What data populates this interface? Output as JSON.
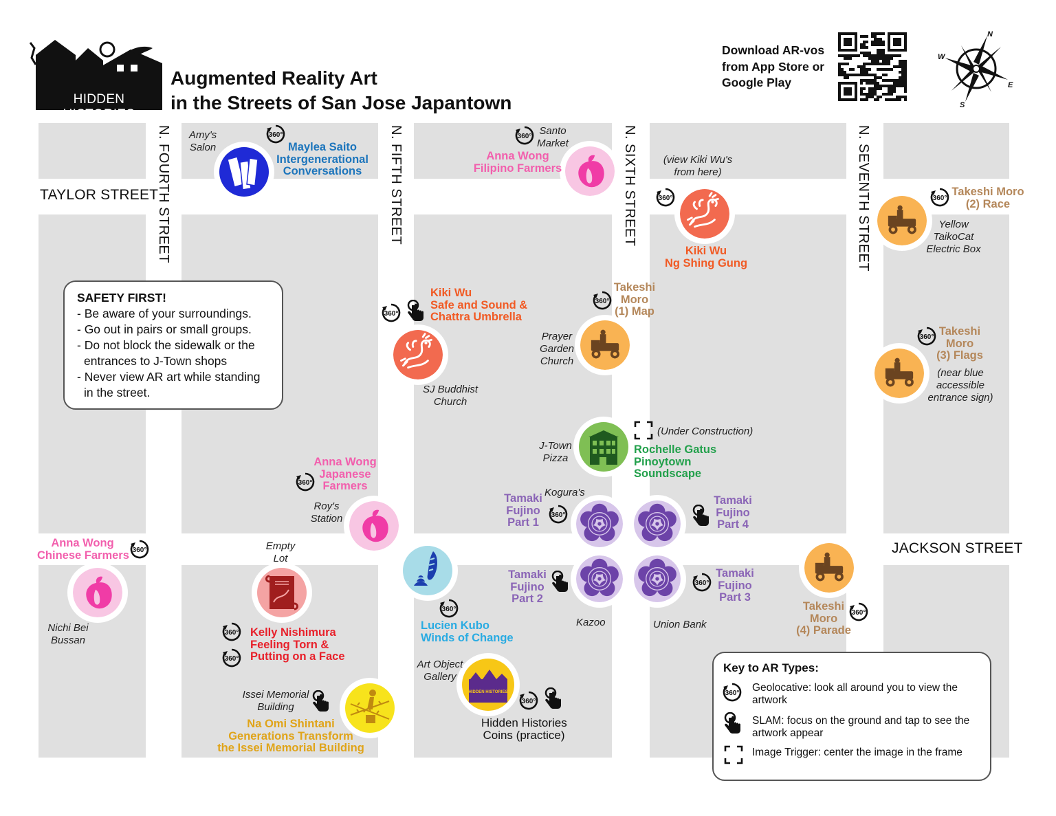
{
  "header": {
    "logo_text": "HIDDEN HISTORIES",
    "title_line1": "Augmented Reality Art",
    "title_line2": "in the Streets of San Jose Japantown",
    "download_line1": "Download AR-vos",
    "download_line2": "from App Store or",
    "download_line3": "Google Play",
    "compass": {
      "n": "N",
      "s": "S",
      "e": "E",
      "w": "W"
    }
  },
  "streets": {
    "taylor": "TAYLOR STREET",
    "jackson": "JACKSON STREET",
    "fourth": "N. FOURTH STREET",
    "fifth": "N. FIFTH STREET",
    "sixth": "N. SIXTH STREET",
    "seventh": "N. SEVENTH STREET"
  },
  "places": {
    "amys_1": "Amy's",
    "amys_2": "Salon",
    "santo_1": "Santo",
    "santo_2": "Market",
    "view_kiki_1": "(view Kiki Wu's",
    "view_kiki_2": "from here)",
    "yellow_1": "Yellow",
    "yellow_2": "TaikoCat",
    "yellow_3": "Electric Box",
    "prayer_1": "Prayer",
    "prayer_2": "Garden",
    "prayer_3": "Church",
    "sjb_1": "SJ Buddhist",
    "sjb_2": "Church",
    "nearblue_1": "(near blue",
    "nearblue_2": "accessible",
    "nearblue_3": "entrance sign)",
    "underconst": "(Under Construction)",
    "jtown_1": "J-Town",
    "jtown_2": "Pizza",
    "roys_1": "Roy's",
    "roys_2": "Station",
    "kogura": "Kogura's",
    "empty_1": "Empty",
    "empty_2": "Lot",
    "nichi_1": "Nichi Bei",
    "nichi_2": "Bussan",
    "kazoo": "Kazoo",
    "union": "Union Bank",
    "artobj_1": "Art Object",
    "artobj_2": "Gallery",
    "issei_1": "Issei Memorial",
    "issei_2": "Building"
  },
  "artworks": {
    "maylea_1": "Maylea Saito",
    "maylea_2": "Intergenerational",
    "maylea_3": "Conversations",
    "anna_fil_1": "Anna Wong",
    "anna_fil_2": "Filipino Farmers",
    "kiki_ng_1": "Kiki Wu",
    "kiki_ng_2": "Ng Shing Gung",
    "moro_race_1": "Takeshi Moro",
    "moro_race_2": "(2) Race",
    "kiki_safe_1": "Kiki Wu",
    "kiki_safe_2": "Safe and Sound &",
    "kiki_safe_3": "Chattra Umbrella",
    "moro_map_1": "Takeshi",
    "moro_map_2": "Moro",
    "moro_map_3": "(1) Map",
    "moro_flags_1": "Takeshi",
    "moro_flags_2": "Moro",
    "moro_flags_3": "(3) Flags",
    "rochelle_1": "Rochelle Gatus",
    "rochelle_2": "Pinoytown",
    "rochelle_3": "Soundscape",
    "anna_jp_1": "Anna Wong",
    "anna_jp_2": "Japanese",
    "anna_jp_3": "Farmers",
    "tf1_1": "Tamaki",
    "tf1_2": "Fujino",
    "tf1_3": "Part 1",
    "tf4_1": "Tamaki",
    "tf4_2": "Fujino",
    "tf4_3": "Part 4",
    "tf2_1": "Tamaki",
    "tf2_2": "Fujino",
    "tf2_3": "Part 2",
    "tf3_1": "Tamaki",
    "tf3_2": "Fujino",
    "tf3_3": "Part 3",
    "anna_ch_1": "Anna Wong",
    "anna_ch_2": "Chinese Farmers",
    "moro_parade_1": "Takeshi",
    "moro_parade_2": "Moro",
    "moro_parade_3": "(4) Parade",
    "kelly_1": "Kelly Nishimura",
    "kelly_2": "Feeling Torn &",
    "kelly_3": "Putting on a Face",
    "lucien_1": "Lucien Kubo",
    "lucien_2": "Winds of Change",
    "naomi_1": "Na Omi Shintani",
    "naomi_2": "Generations Transform",
    "naomi_3": "the Issei Memorial Building",
    "hh_coins_1": "Hidden Histories",
    "hh_coins_2": "Coins (practice)",
    "coin_text": "HIDDEN HISTORIES"
  },
  "badge_360": "360",
  "safety": {
    "heading": "SAFETY FIRST!",
    "l1": "- Be aware of your surroundings.",
    "l2": "- Go out in pairs or small groups.",
    "l3": "- Do not block the sidewalk or the",
    "l4": "  entrances to J-Town shops",
    "l5": "- Never view AR art while standing",
    "l6": "  in the street."
  },
  "key": {
    "heading": "Key to AR Types:",
    "geo_1": "Geolocative: look all around you to view the",
    "geo_2": "artwork",
    "slam_1": "SLAM: focus on the ground and tap to see the",
    "slam_2": "artwork appear",
    "img": "Image Trigger: center the image in the frame"
  },
  "colors": {
    "block": "#e0e0e0",
    "orange": "#f15a24",
    "blue": "#1c75bc",
    "pink": "#f25fad",
    "tan": "#b4875a",
    "green": "#22a04b",
    "purple": "#8a64b6",
    "red": "#e8202a",
    "gold": "#e0a419",
    "cyan": "#29abe2"
  }
}
